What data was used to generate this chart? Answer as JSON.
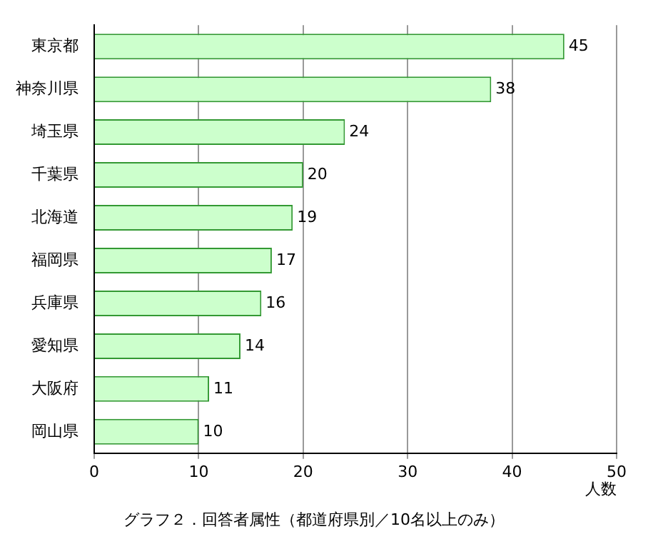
{
  "chart_data": {
    "type": "bar",
    "orientation": "horizontal",
    "title": "グラフ２．回答者属性（都道府県別／10名以上のみ）",
    "xlabel": "人数",
    "categories": [
      "東京都",
      "神奈川県",
      "埼玉県",
      "千葉県",
      "北海道",
      "福岡県",
      "兵庫県",
      "愛知県",
      "大阪府",
      "岡山県"
    ],
    "values": [
      45,
      38,
      24,
      20,
      19,
      17,
      16,
      14,
      11,
      10
    ],
    "color": "#ccffcc",
    "xlim": [
      0,
      50
    ],
    "xticks": [
      0,
      10,
      20,
      30,
      40,
      50
    ],
    "grid": "x",
    "data_labels": true,
    "legend": false
  }
}
